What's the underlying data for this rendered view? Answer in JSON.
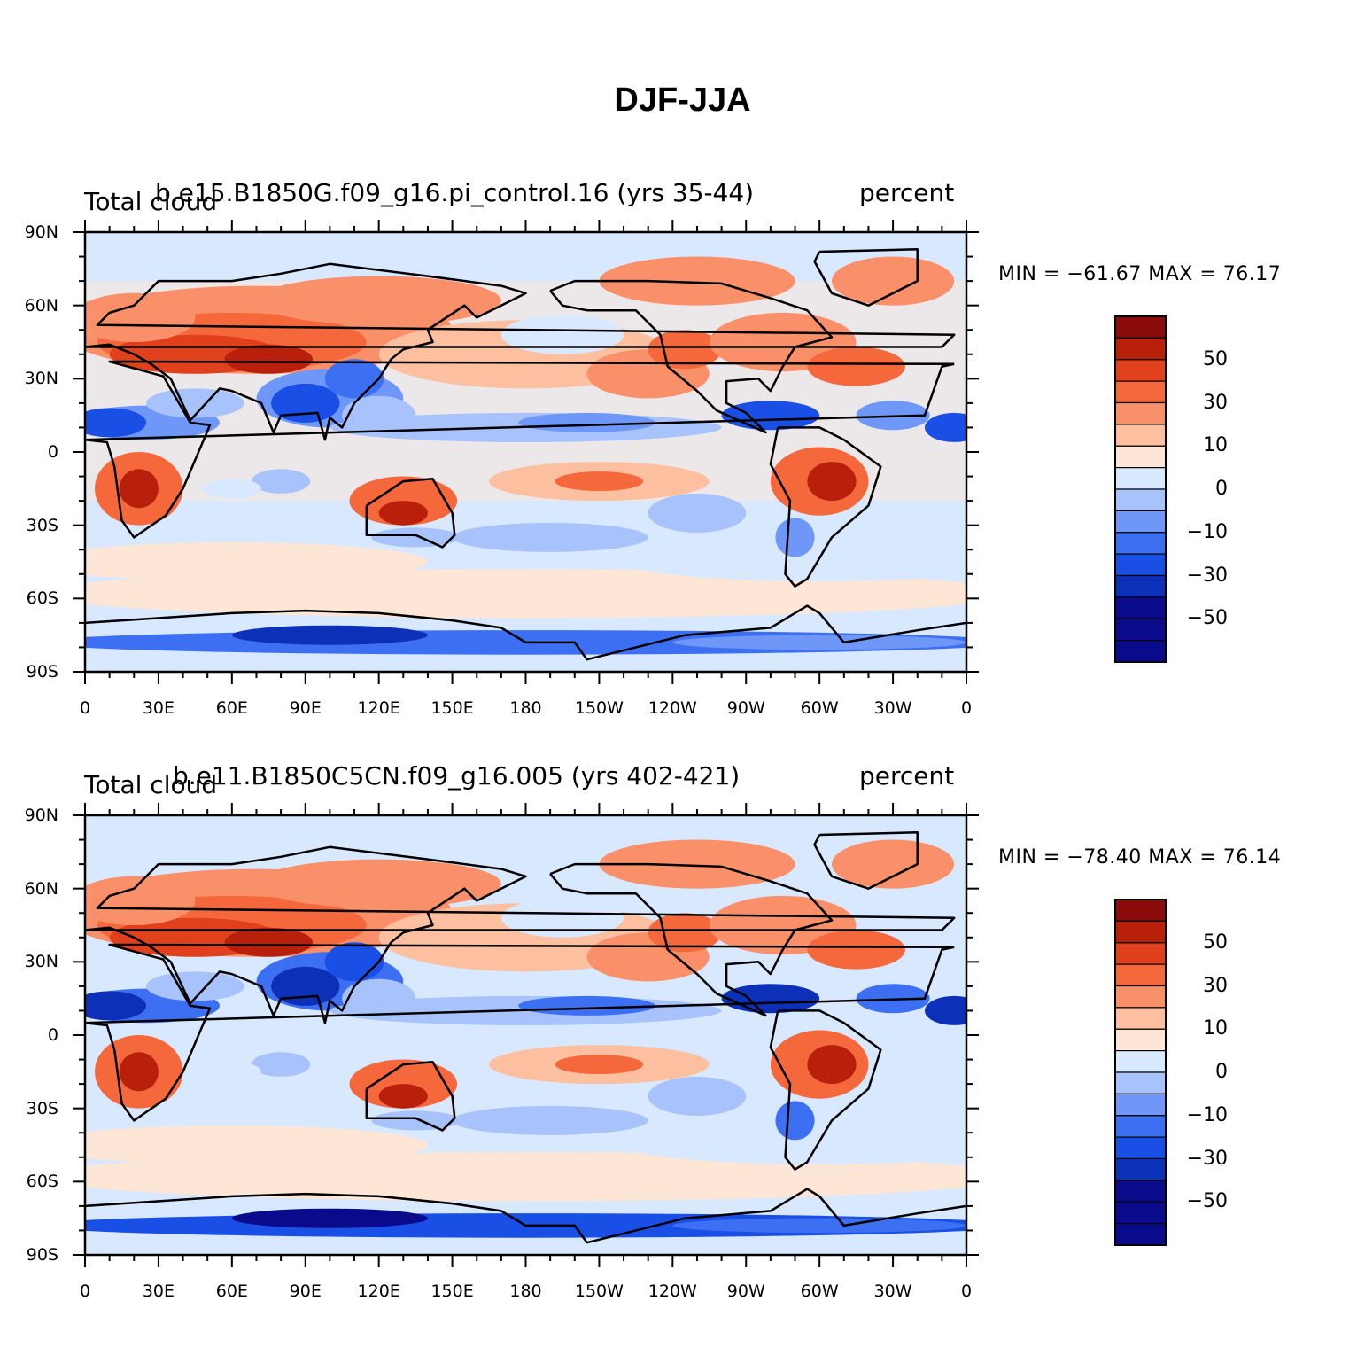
{
  "figure_title": "DJF-JJA",
  "colors": {
    "land_outline": "#000000",
    "levels": [
      "#0a0a8c",
      "#0d30b8",
      "#1a4fe6",
      "#3d6ff2",
      "#6e97f7",
      "#a8c2fb",
      "#d8e8ff",
      "#fde6d6",
      "#fcbfa0",
      "#fa9069",
      "#f4683c",
      "#e0401c",
      "#b8200c",
      "#8b0a0a"
    ]
  },
  "x_tick_labels": [
    "0",
    "30E",
    "60E",
    "90E",
    "120E",
    "150E",
    "180",
    "150W",
    "120W",
    "90W",
    "60W",
    "30W",
    "0"
  ],
  "y_tick_labels": [
    "90N",
    "60N",
    "30N",
    "0",
    "30S",
    "60S",
    "90S"
  ],
  "colorbar_tick_labels": [
    "50",
    "30",
    "10",
    "0",
    "−10",
    "−30",
    "−50"
  ],
  "panels": [
    {
      "left_label": "Total cloud",
      "center_label": "b.e15.B1850G.f09_g16.pi_control.16 (yrs 35-44)",
      "right_label": "percent",
      "stats_text": "MIN = −61.67 MAX =  76.17"
    },
    {
      "left_label": "Total cloud",
      "center_label": "b.e11.B1850C5CN.f09_g16.005 (yrs 402-421)",
      "right_label": "percent",
      "stats_text": "MIN = −78.40 MAX =  76.14"
    }
  ],
  "chart_data": [
    {
      "type": "heatmap",
      "title": "DJF-JJA",
      "subtitle": "b.e15.B1850G.f09_g16.pi_control.16 (yrs 35-44)",
      "variable": "Total cloud",
      "units": "percent",
      "min": -61.67,
      "max": 76.17,
      "x_range": [
        0,
        360
      ],
      "y_range": [
        -90,
        90
      ],
      "contour_levels": [
        -60,
        -50,
        -40,
        -30,
        -20,
        -10,
        -5,
        0,
        5,
        10,
        20,
        30,
        40,
        50,
        60
      ]
    },
    {
      "type": "heatmap",
      "title": "DJF-JJA",
      "subtitle": "b.e11.B1850C5CN.f09_g16.005 (yrs 402-421)",
      "variable": "Total cloud",
      "units": "percent",
      "min": -78.4,
      "max": 76.14,
      "x_range": [
        0,
        360
      ],
      "y_range": [
        -90,
        90
      ],
      "contour_levels": [
        -60,
        -50,
        -40,
        -30,
        -20,
        -10,
        -5,
        0,
        5,
        10,
        20,
        30,
        40,
        50,
        60
      ]
    }
  ]
}
